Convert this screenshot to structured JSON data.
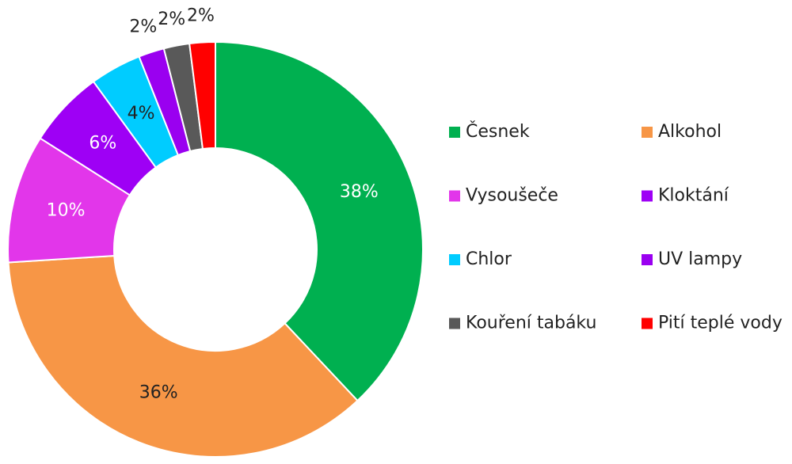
{
  "chart_data": {
    "type": "donut",
    "categories": [
      "Česnek",
      "Alkohol",
      "Vysoušeče",
      "Kloktání",
      "Chlor",
      "UV lampy",
      "Kouření tabáku",
      "Pití teplé vody"
    ],
    "values": [
      38,
      36,
      10,
      6,
      4,
      2,
      2,
      2
    ],
    "value_labels": [
      "38%",
      "36%",
      "10%",
      "6%",
      "4%",
      "2%",
      "2%",
      "2%"
    ],
    "colors": [
      "#00b050",
      "#f79646",
      "#e236ea",
      "#9e00f5",
      "#00ccff",
      "#9a00f0",
      "#595959",
      "#ff0000"
    ],
    "legend": "right"
  }
}
